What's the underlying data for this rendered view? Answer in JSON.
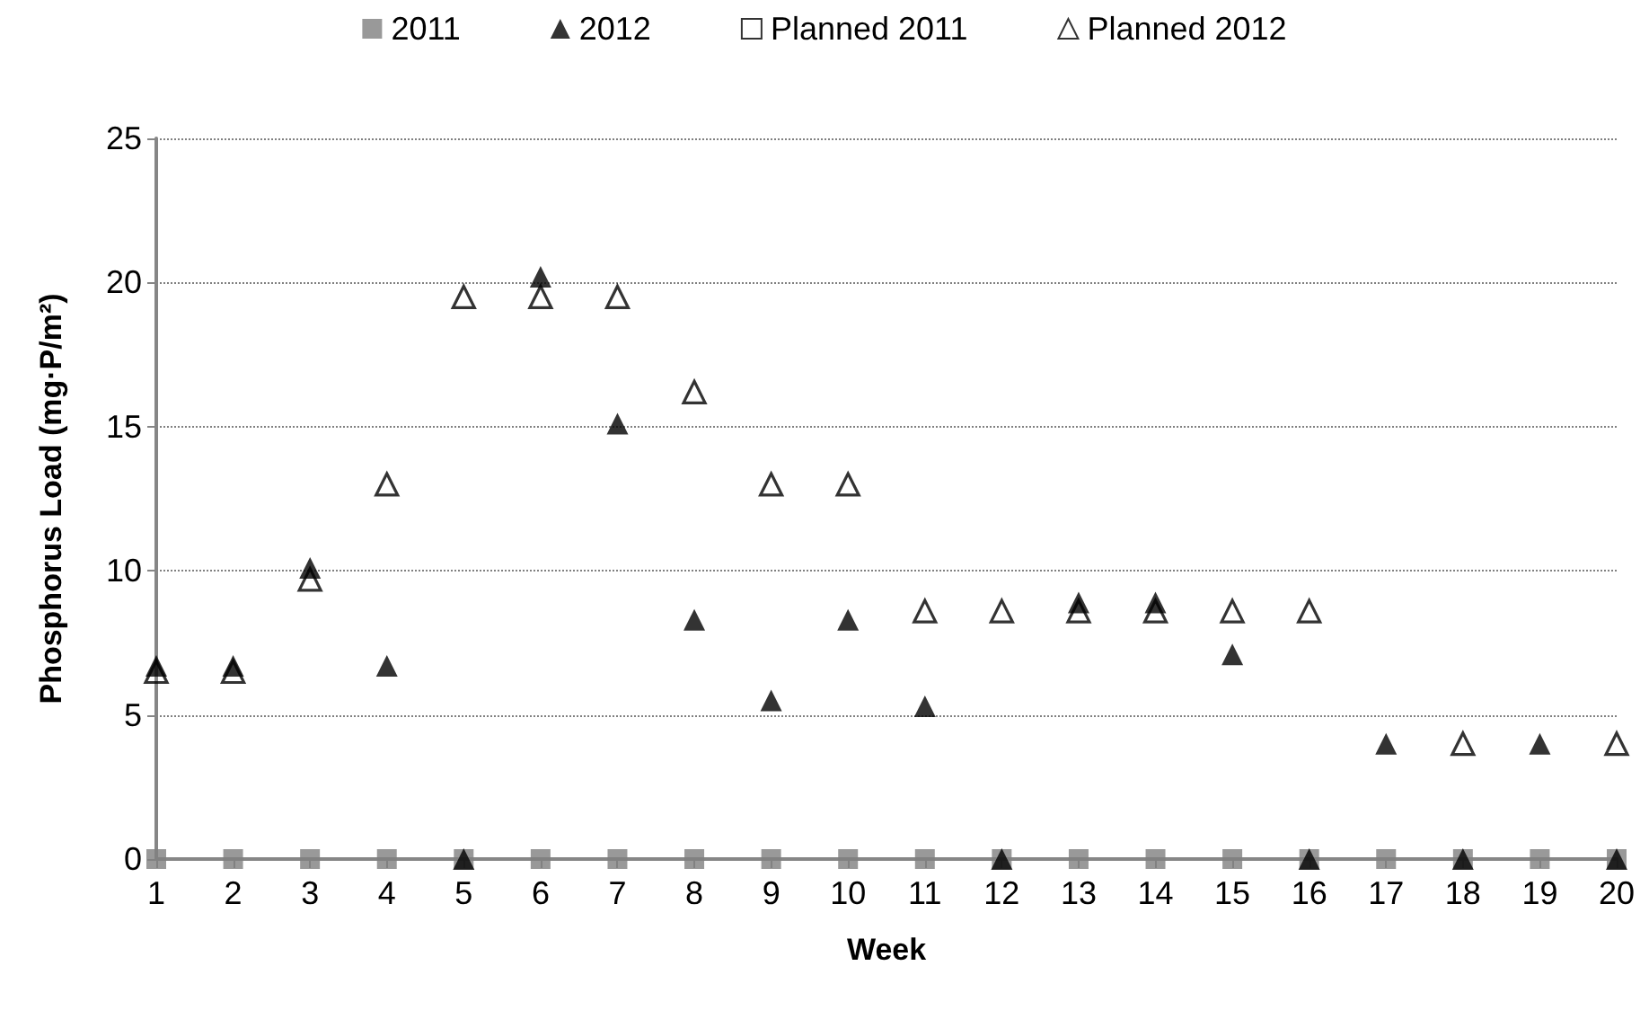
{
  "chart_data": {
    "type": "scatter",
    "xlabel": "Week",
    "ylabel": "Phosphorus Load (mg·P/m²)",
    "x": [
      1,
      2,
      3,
      4,
      5,
      6,
      7,
      8,
      9,
      10,
      11,
      12,
      13,
      14,
      15,
      16,
      17,
      18,
      19,
      20
    ],
    "xlim": [
      1,
      20
    ],
    "xticks": [
      1,
      2,
      3,
      4,
      5,
      6,
      7,
      8,
      9,
      10,
      11,
      12,
      13,
      14,
      15,
      16,
      17,
      18,
      19,
      20
    ],
    "series": [
      {
        "name": "2011",
        "color": "#808080",
        "marker": "square",
        "values": [
          0,
          0,
          0,
          0,
          0,
          0,
          0,
          0,
          0,
          0,
          0,
          0,
          0,
          0,
          0,
          0,
          0,
          0,
          0,
          0
        ]
      },
      {
        "name": "2012",
        "color": "#000000",
        "marker": "triangle",
        "values": [
          6.7,
          6.7,
          10.1,
          6.7,
          0,
          20.2,
          15.1,
          8.3,
          5.5,
          8.3,
          5.3,
          0,
          8.9,
          8.9,
          7.1,
          0,
          4.0,
          0,
          4.0,
          0
        ]
      },
      {
        "name": "Planned 2011",
        "color": "#000000",
        "marker": "square-open",
        "values": [
          null,
          null,
          null,
          null,
          null,
          null,
          null,
          null,
          null,
          null,
          null,
          null,
          null,
          null,
          null,
          null,
          null,
          null,
          null,
          null
        ]
      },
      {
        "name": "Planned 2012",
        "color": "#000000",
        "marker": "triangle-open",
        "values": [
          6.5,
          6.5,
          9.7,
          13.0,
          19.5,
          19.5,
          19.5,
          16.2,
          13.0,
          13.0,
          8.6,
          8.6,
          8.6,
          8.6,
          8.6,
          8.6,
          null,
          4.0,
          null,
          4.0
        ]
      }
    ],
    "ylim": [
      0,
      25
    ],
    "yticks": [
      0,
      5,
      10,
      15,
      20,
      25
    ],
    "grid": "y",
    "legend": "top"
  }
}
